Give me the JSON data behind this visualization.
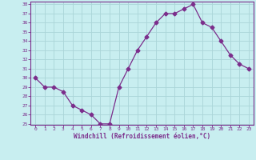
{
  "x": [
    0,
    1,
    2,
    3,
    4,
    5,
    6,
    7,
    8,
    9,
    10,
    11,
    12,
    13,
    14,
    15,
    16,
    17,
    18,
    19,
    20,
    21,
    22,
    23
  ],
  "y": [
    30,
    29,
    29,
    28.5,
    27,
    26.5,
    26,
    25,
    25,
    29,
    31,
    33,
    34.5,
    36,
    37,
    37,
    37.5,
    38,
    36,
    35.5,
    34,
    32.5,
    31.5,
    31
  ],
  "line_color": "#7b2d8b",
  "marker": "D",
  "marker_size": 2.5,
  "bg_color": "#c8eef0",
  "grid_color": "#aad4d8",
  "xlabel": "Windchill (Refroidissement éolien,°C)",
  "xlabel_color": "#7b2d8b",
  "tick_color": "#7b2d8b",
  "ylim": [
    25,
    38
  ],
  "xlim": [
    -0.5,
    23.5
  ],
  "yticks": [
    25,
    26,
    27,
    28,
    29,
    30,
    31,
    32,
    33,
    34,
    35,
    36,
    37,
    38
  ],
  "xticks": [
    0,
    1,
    2,
    3,
    4,
    5,
    6,
    7,
    8,
    9,
    10,
    11,
    12,
    13,
    14,
    15,
    16,
    17,
    18,
    19,
    20,
    21,
    22,
    23
  ],
  "figsize": [
    3.2,
    2.0
  ],
  "dpi": 100
}
